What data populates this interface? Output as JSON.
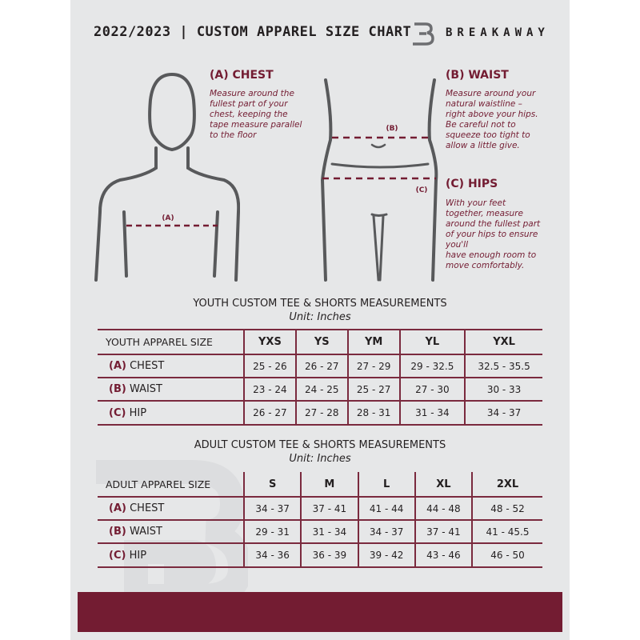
{
  "header": {
    "title": "2022/2023  |  CUSTOM APPAREL SIZE CHART",
    "brand": "BREAKAWAY"
  },
  "chest": {
    "heading": "(A) CHEST",
    "text": "Measure around the\nfullest part of your\nchest, keeping the\ntape measure parallel\nto the floor",
    "marker": "(A)"
  },
  "waist": {
    "heading": "(B) WAIST",
    "text": "Measure around your\nnatural waistline –\nright above your hips.\nBe careful not to\nsqueeze too tight to\nallow a little give.",
    "marker": "(B)"
  },
  "hips": {
    "heading": "(C) HIPS",
    "text": "With your feet\ntogether, measure\naround the fullest part\nof your hips to ensure\nyou'll\nhave enough room to\nmove comfortably.",
    "marker": "(C)"
  },
  "youth": {
    "title": "YOUTH CUSTOM TEE & SHORTS MEASUREMENTS",
    "unit": "Unit: Inches",
    "size_label": "YOUTH APPAREL SIZE",
    "sizes": [
      "YXS",
      "YS",
      "YM",
      "YL",
      "YXL"
    ],
    "rows": [
      {
        "letter": "(A)",
        "name": "CHEST",
        "values": [
          "25 - 26",
          "26 - 27",
          "27 - 29",
          "29 - 32.5",
          "32.5 - 35.5"
        ]
      },
      {
        "letter": "(B)",
        "name": "WAIST",
        "values": [
          "23 - 24",
          "24 - 25",
          "25 - 27",
          "27 - 30",
          "30 - 33"
        ]
      },
      {
        "letter": "(C)",
        "name": "HIP",
        "values": [
          "26 - 27",
          "27 - 28",
          "28 - 31",
          "31 - 34",
          "34 - 37"
        ]
      }
    ]
  },
  "adult": {
    "title": "ADULT CUSTOM TEE & SHORTS MEASUREMENTS",
    "unit": "Unit: Inches",
    "size_label": "ADULT APPAREL SIZE",
    "sizes": [
      "S",
      "M",
      "L",
      "XL",
      "2XL"
    ],
    "rows": [
      {
        "letter": "(A)",
        "name": "CHEST",
        "values": [
          "34 - 37",
          "37 - 41",
          "41 - 44",
          "44 - 48",
          "48 - 52"
        ]
      },
      {
        "letter": "(B)",
        "name": "WAIST",
        "values": [
          "29 - 31",
          "31 - 34",
          "34 - 37",
          "37 - 41",
          "41 - 45.5"
        ]
      },
      {
        "letter": "(C)",
        "name": "HIP",
        "values": [
          "34 - 36",
          "36 - 39",
          "39 - 42",
          "43 - 46",
          "46 - 50"
        ]
      }
    ]
  },
  "colors": {
    "accent": "#731c32",
    "background": "#e6e7e8",
    "text": "#231f20",
    "figure": "#58595b"
  }
}
